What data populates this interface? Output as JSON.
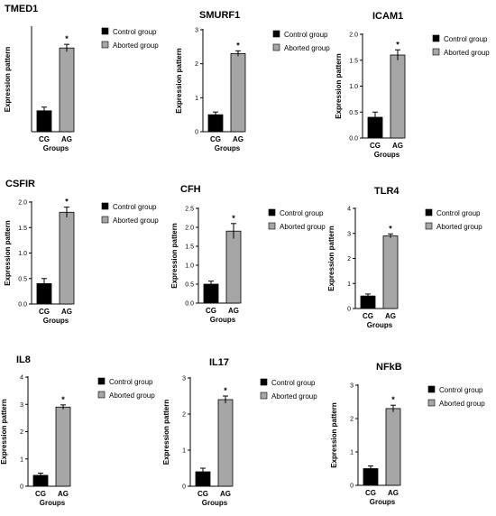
{
  "legend": [
    "Control group",
    "Aborted group"
  ],
  "colors": {
    "control": "#000000",
    "aborted": "#a6a6a6",
    "axis": "#000000"
  },
  "chart_data": [
    {
      "type": "bar",
      "title": "TMED1",
      "categories": [
        "CG",
        "AG"
      ],
      "values": [
        0.4,
        1.6
      ],
      "errors": [
        0.07,
        0.07
      ],
      "significance": [
        "",
        "*"
      ],
      "xlabel": "Groups",
      "ylabel": "Expression pattern",
      "ylim": [
        0,
        2.0
      ],
      "yticks": [],
      "legend": [
        "Control group",
        "Aborted group"
      ]
    },
    {
      "type": "bar",
      "title": "SMURF1",
      "categories": [
        "CG",
        "AG"
      ],
      "values": [
        0.5,
        2.3
      ],
      "errors": [
        0.08,
        0.08
      ],
      "significance": [
        "",
        "*"
      ],
      "xlabel": "Groups",
      "ylabel": "Expression pattern",
      "ylim": [
        0,
        3
      ],
      "yticks": [
        "0",
        "1",
        "2",
        "3"
      ],
      "legend": [
        "Control group",
        "Aborted group"
      ]
    },
    {
      "type": "bar",
      "title": "ICAM1",
      "categories": [
        "CG",
        "AG"
      ],
      "values": [
        0.4,
        1.6
      ],
      "errors": [
        0.1,
        0.1
      ],
      "significance": [
        "",
        "*"
      ],
      "xlabel": "Groups",
      "ylabel": "Expression pattern",
      "ylim": [
        0,
        2.0
      ],
      "yticks": [
        "0.0",
        "0.5",
        "1.0",
        "1.5",
        "2.0"
      ],
      "legend": [
        "Control group",
        "Aborted group"
      ]
    },
    {
      "type": "bar",
      "title": "CSFIR",
      "categories": [
        "CG",
        "AG"
      ],
      "values": [
        0.4,
        1.8
      ],
      "errors": [
        0.1,
        0.1
      ],
      "significance": [
        "",
        "*"
      ],
      "xlabel": "Groups",
      "ylabel": "Expression pattern",
      "ylim": [
        0,
        2.0
      ],
      "yticks": [
        "0.0",
        "0.5",
        "1.0",
        "1.5",
        "2.0"
      ],
      "legend": [
        "Control group",
        "Aborted group"
      ]
    },
    {
      "type": "bar",
      "title": "CFH",
      "categories": [
        "CG",
        "AG"
      ],
      "values": [
        0.5,
        1.9
      ],
      "errors": [
        0.08,
        0.2
      ],
      "significance": [
        "",
        "*"
      ],
      "xlabel": "Groups",
      "ylabel": "Expression pattern",
      "ylim": [
        0,
        2.5
      ],
      "yticks": [
        "0.0",
        "0.5",
        "1.0",
        "1.5",
        "2.0",
        "2.5"
      ],
      "legend": [
        "Control group",
        "Aborted group"
      ]
    },
    {
      "type": "bar",
      "title": "TLR4",
      "categories": [
        "CG",
        "AG"
      ],
      "values": [
        0.5,
        2.9
      ],
      "errors": [
        0.08,
        0.08
      ],
      "significance": [
        "",
        "*"
      ],
      "xlabel": "Groups",
      "ylabel": "Expression pattern",
      "ylim": [
        0,
        4
      ],
      "yticks": [
        "0",
        "1",
        "2",
        "3",
        "4"
      ],
      "legend": [
        "Control group",
        "Aborted group"
      ]
    },
    {
      "type": "bar",
      "title": "IL8",
      "categories": [
        "CG",
        "AG"
      ],
      "values": [
        0.4,
        2.9
      ],
      "errors": [
        0.08,
        0.08
      ],
      "significance": [
        "",
        "*"
      ],
      "xlabel": "Groups",
      "ylabel": "Expression pattern",
      "ylim": [
        0,
        4
      ],
      "yticks": [
        "0",
        "1",
        "2",
        "3",
        "4"
      ],
      "legend": [
        "Control group",
        "Aborted group"
      ]
    },
    {
      "type": "bar",
      "title": "IL17",
      "categories": [
        "CG",
        "AG"
      ],
      "values": [
        0.4,
        2.4
      ],
      "errors": [
        0.1,
        0.1
      ],
      "significance": [
        "",
        "*"
      ],
      "xlabel": "Groups",
      "ylabel": "Expression pattern",
      "ylim": [
        0,
        3
      ],
      "yticks": [
        "0",
        "1",
        "2",
        "3"
      ],
      "legend": [
        "Control group",
        "Aborted group"
      ]
    },
    {
      "type": "bar",
      "title": "NFkB",
      "categories": [
        "CG",
        "AG"
      ],
      "values": [
        0.5,
        2.3
      ],
      "errors": [
        0.08,
        0.1
      ],
      "significance": [
        "",
        "*"
      ],
      "xlabel": "Groups",
      "ylabel": "Expression pattern",
      "ylim": [
        0,
        3
      ],
      "yticks": [
        "0",
        "1",
        "2",
        "3"
      ],
      "legend": [
        "Control group",
        "Aborted group"
      ]
    }
  ]
}
